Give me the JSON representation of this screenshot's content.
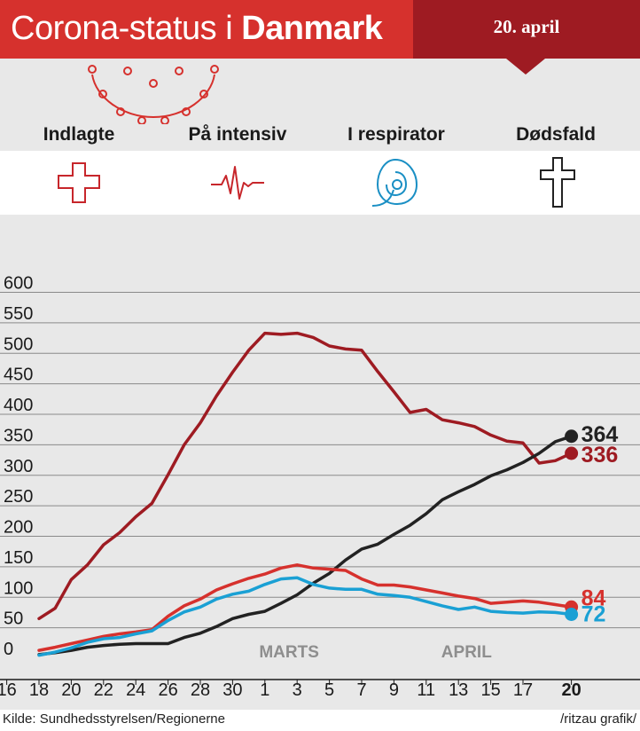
{
  "header": {
    "title_prefix": "Corona-status i ",
    "title_bold": "Danmark",
    "date": "20. april"
  },
  "categories": [
    {
      "label": "Indlagte",
      "icon": "medical-cross-icon",
      "color": "#c7262b"
    },
    {
      "label": "På intensiv",
      "icon": "heartbeat-icon",
      "color": "#c7262b"
    },
    {
      "label": "I respirator",
      "icon": "respirator-mask-icon",
      "color": "#1a8fc4"
    },
    {
      "label": "Dødsfald",
      "icon": "christian-cross-icon",
      "color": "#222222"
    }
  ],
  "chart_data": {
    "type": "line",
    "ylim": [
      0,
      600
    ],
    "yticks": [
      "600",
      "550",
      "500",
      "450",
      "400",
      "350",
      "300",
      "250",
      "200",
      "150",
      "100",
      "50",
      "0"
    ],
    "xticks": [
      "16",
      "18",
      "20",
      "22",
      "24",
      "26",
      "28",
      "30",
      "1",
      "3",
      "5",
      "7",
      "9",
      "11",
      "13",
      "15",
      "17",
      "20"
    ],
    "month_labels": [
      "MARTS",
      "APRIL"
    ],
    "x": [
      "18/3",
      "19/3",
      "20/3",
      "21/3",
      "22/3",
      "23/3",
      "24/3",
      "25/3",
      "26/3",
      "27/3",
      "28/3",
      "29/3",
      "30/3",
      "31/3",
      "1/4",
      "2/4",
      "3/4",
      "4/4",
      "5/4",
      "6/4",
      "7/4",
      "8/4",
      "9/4",
      "10/4",
      "11/4",
      "12/4",
      "13/4",
      "14/4",
      "15/4",
      "16/4",
      "17/4",
      "18/4",
      "19/4",
      "20/4"
    ],
    "series": [
      {
        "name": "Indlagte",
        "color": "#9e1b22",
        "end_label": "336",
        "values": [
          65,
          82,
          129,
          153,
          186,
          206,
          232,
          254,
          301,
          350,
          386,
          430,
          469,
          505,
          533,
          531,
          533,
          526,
          512,
          507,
          505,
          470,
          437,
          403,
          408,
          391,
          386,
          380,
          366,
          356,
          353,
          320,
          324,
          336
        ]
      },
      {
        "name": "Dødsfald",
        "color": "#222222",
        "end_label": "364",
        "values": [
          6,
          9,
          13,
          18,
          21,
          23,
          24,
          24,
          24,
          34,
          41,
          52,
          65,
          72,
          77,
          90,
          104,
          123,
          139,
          161,
          179,
          187,
          203,
          218,
          237,
          260,
          273,
          285,
          299,
          309,
          321,
          336,
          355,
          364
        ]
      },
      {
        "name": "På intensiv",
        "color": "#d6312d",
        "end_label": "84",
        "values": [
          13,
          18,
          24,
          30,
          36,
          40,
          43,
          47,
          69,
          86,
          97,
          112,
          122,
          131,
          138,
          148,
          153,
          148,
          146,
          144,
          130,
          120,
          120,
          117,
          112,
          107,
          102,
          98,
          90,
          92,
          94,
          92,
          88,
          84
        ]
      },
      {
        "name": "I respirator",
        "color": "#1aa0d4",
        "end_label": "72",
        "values": [
          5,
          10,
          17,
          26,
          32,
          34,
          40,
          45,
          62,
          76,
          84,
          97,
          105,
          110,
          121,
          130,
          132,
          121,
          115,
          113,
          113,
          105,
          103,
          100,
          93,
          86,
          80,
          84,
          77,
          75,
          74,
          76,
          75,
          72
        ]
      }
    ]
  },
  "footer": {
    "source": "Kilde: Sundhedsstyrelsen/Regionerne",
    "credit": "/ritzau grafik/"
  }
}
